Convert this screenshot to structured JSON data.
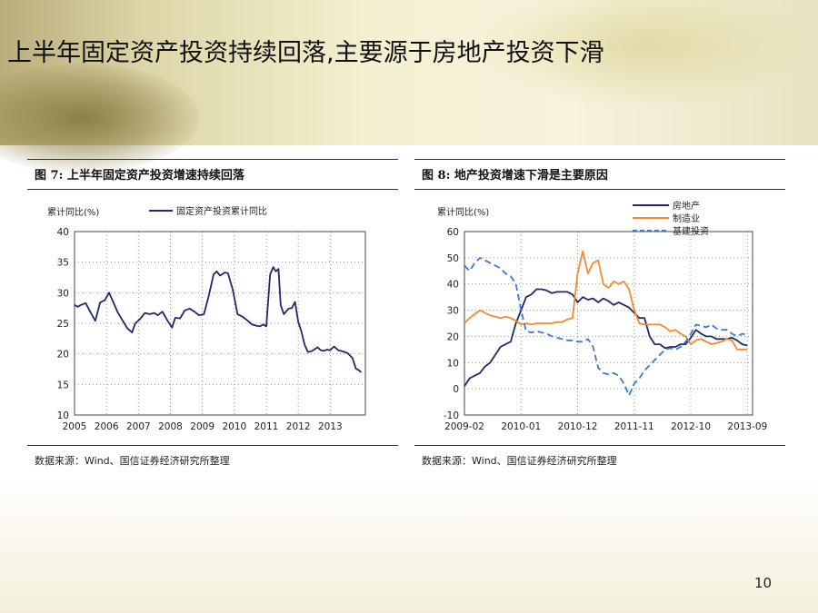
{
  "slide": {
    "title": "上半年固定资产投资持续回落,主要源于房地产投资下滑",
    "page_number": "10"
  },
  "chart_data": [
    {
      "type": "line",
      "figure_title": "图 7: 上半年固定资产投资增速持续回落",
      "ylabel": "累计同比(%)",
      "source": "数据来源：Wind、国信证券经济研究所整理",
      "xlim": [
        2005,
        2014.1
      ],
      "ylim": [
        10,
        40
      ],
      "yticks": [
        10,
        15,
        20,
        25,
        30,
        35,
        40
      ],
      "xticks": [
        "2005",
        "2006",
        "2007",
        "2008",
        "2009",
        "2010",
        "2011",
        "2012",
        "2013"
      ],
      "grid": true,
      "legend": "top",
      "series": [
        {
          "name": "固定资产投资累计同比",
          "color": "#1f2a6b",
          "points": [
            [
              2005.0,
              28.0
            ],
            [
              2005.1,
              27.7
            ],
            [
              2005.2,
              28.0
            ],
            [
              2005.35,
              28.3
            ],
            [
              2005.5,
              26.8
            ],
            [
              2005.65,
              25.4
            ],
            [
              2005.8,
              28.4
            ],
            [
              2005.95,
              28.8
            ],
            [
              2006.08,
              30.0
            ],
            [
              2006.2,
              28.6
            ],
            [
              2006.35,
              26.8
            ],
            [
              2006.5,
              25.5
            ],
            [
              2006.65,
              24.2
            ],
            [
              2006.8,
              23.5
            ],
            [
              2006.9,
              25.0
            ],
            [
              2007.05,
              25.7
            ],
            [
              2007.2,
              26.7
            ],
            [
              2007.35,
              26.5
            ],
            [
              2007.5,
              26.7
            ],
            [
              2007.6,
              26.3
            ],
            [
              2007.75,
              26.9
            ],
            [
              2007.9,
              25.5
            ],
            [
              2008.05,
              24.3
            ],
            [
              2008.15,
              25.9
            ],
            [
              2008.3,
              25.8
            ],
            [
              2008.45,
              27.1
            ],
            [
              2008.6,
              27.4
            ],
            [
              2008.75,
              26.9
            ],
            [
              2008.9,
              26.3
            ],
            [
              2009.05,
              26.5
            ],
            [
              2009.2,
              29.5
            ],
            [
              2009.35,
              33.0
            ],
            [
              2009.45,
              33.5
            ],
            [
              2009.55,
              32.8
            ],
            [
              2009.7,
              33.3
            ],
            [
              2009.8,
              33.2
            ],
            [
              2009.95,
              30.5
            ],
            [
              2010.1,
              26.5
            ],
            [
              2010.25,
              26.1
            ],
            [
              2010.4,
              25.5
            ],
            [
              2010.55,
              24.8
            ],
            [
              2010.7,
              24.6
            ],
            [
              2010.8,
              24.5
            ],
            [
              2010.9,
              24.8
            ],
            [
              2011.0,
              24.5
            ],
            [
              2011.12,
              33.0
            ],
            [
              2011.22,
              34.2
            ],
            [
              2011.3,
              33.5
            ],
            [
              2011.38,
              33.9
            ],
            [
              2011.45,
              28.0
            ],
            [
              2011.55,
              26.5
            ],
            [
              2011.7,
              27.4
            ],
            [
              2011.8,
              27.5
            ],
            [
              2011.9,
              28.5
            ],
            [
              2012.0,
              25.2
            ],
            [
              2012.1,
              23.6
            ],
            [
              2012.2,
              21.5
            ],
            [
              2012.3,
              20.3
            ],
            [
              2012.4,
              20.4
            ],
            [
              2012.5,
              20.7
            ],
            [
              2012.6,
              21.1
            ],
            [
              2012.7,
              20.6
            ],
            [
              2012.8,
              20.5
            ],
            [
              2012.9,
              20.7
            ],
            [
              2013.0,
              20.6
            ],
            [
              2013.12,
              21.2
            ],
            [
              2013.25,
              20.6
            ],
            [
              2013.4,
              20.4
            ],
            [
              2013.55,
              20.1
            ],
            [
              2013.7,
              19.3
            ],
            [
              2013.8,
              17.6
            ],
            [
              2013.9,
              17.3
            ],
            [
              2013.97,
              17.0
            ]
          ]
        }
      ]
    },
    {
      "type": "line",
      "figure_title": "图 8: 地产投资增速下滑是主要原因",
      "ylabel": "累计同比(%)",
      "source": "数据来源：Wind、国信证券经济研究所整理",
      "xlim": [
        0,
        56
      ],
      "ylim": [
        -10,
        60
      ],
      "yticks": [
        -10,
        0,
        10,
        20,
        30,
        40,
        50,
        60
      ],
      "xticks": [
        {
          "label": "2009-02",
          "x": 0
        },
        {
          "label": "2010-01",
          "x": 11
        },
        {
          "label": "2010-12",
          "x": 22
        },
        {
          "label": "2011-11",
          "x": 33
        },
        {
          "label": "2012-10",
          "x": 44
        },
        {
          "label": "2013-09",
          "x": 55
        }
      ],
      "grid": true,
      "legend": "top-right",
      "series": [
        {
          "name": "房地产",
          "color": "#1f2a6b",
          "dash": "",
          "points": [
            [
              0,
              1
            ],
            [
              1,
              4
            ],
            [
              2,
              5
            ],
            [
              3,
              6
            ],
            [
              4,
              8.5
            ],
            [
              5,
              10
            ],
            [
              6,
              13
            ],
            [
              7,
              16
            ],
            [
              8,
              17
            ],
            [
              9,
              18
            ],
            [
              10,
              25
            ],
            [
              11,
              30
            ],
            [
              12,
              35
            ],
            [
              13,
              36
            ],
            [
              14,
              38
            ],
            [
              15,
              38
            ],
            [
              16,
              37.5
            ],
            [
              17,
              36.5
            ],
            [
              18,
              37
            ],
            [
              19,
              37
            ],
            [
              20,
              37
            ],
            [
              21,
              36
            ],
            [
              22,
              33
            ],
            [
              23,
              35
            ],
            [
              24,
              34
            ],
            [
              25,
              34.5
            ],
            [
              26,
              33
            ],
            [
              27,
              34.5
            ],
            [
              28,
              33.5
            ],
            [
              29,
              32
            ],
            [
              30,
              33
            ],
            [
              31,
              32
            ],
            [
              32,
              31
            ],
            [
              33,
              29
            ],
            [
              34,
              27
            ],
            [
              35,
              27
            ],
            [
              36,
              20
            ],
            [
              37,
              17
            ],
            [
              38,
              17
            ],
            [
              39,
              15.5
            ],
            [
              40,
              16
            ],
            [
              41,
              16
            ],
            [
              42,
              17
            ],
            [
              43,
              17
            ],
            [
              44,
              19.5
            ],
            [
              45,
              22.5
            ],
            [
              46,
              21
            ],
            [
              47,
              20
            ],
            [
              48,
              20
            ],
            [
              49,
              19
            ],
            [
              50,
              19
            ],
            [
              51,
              19
            ],
            [
              52,
              19.5
            ],
            [
              53,
              18.5
            ],
            [
              54,
              17
            ],
            [
              55,
              16.5
            ]
          ]
        },
        {
          "name": "制造业",
          "color": "#f28a2e",
          "dash": "",
          "points": [
            [
              0,
              25
            ],
            [
              1,
              27
            ],
            [
              2,
              28.5
            ],
            [
              3,
              30
            ],
            [
              4,
              29
            ],
            [
              5,
              28
            ],
            [
              6,
              27.5
            ],
            [
              7,
              27
            ],
            [
              8,
              27.5
            ],
            [
              9,
              27
            ],
            [
              10,
              26
            ],
            [
              11,
              24.5
            ],
            [
              12,
              25
            ],
            [
              13,
              24.5
            ],
            [
              14,
              25
            ],
            [
              15,
              25
            ],
            [
              16,
              25
            ],
            [
              17,
              25
            ],
            [
              18,
              25.5
            ],
            [
              19,
              25.5
            ],
            [
              20,
              26.5
            ],
            [
              21,
              27
            ],
            [
              22,
              44
            ],
            [
              23,
              52.5
            ],
            [
              24,
              44
            ],
            [
              25,
              48
            ],
            [
              26,
              49
            ],
            [
              27,
              40
            ],
            [
              28,
              38.5
            ],
            [
              29,
              41
            ],
            [
              30,
              40
            ],
            [
              31,
              41
            ],
            [
              32,
              38
            ],
            [
              33,
              30
            ],
            [
              34,
              25
            ],
            [
              35,
              24.5
            ],
            [
              36,
              24.5
            ],
            [
              37,
              24.5
            ],
            [
              38,
              24.5
            ],
            [
              39,
              23.5
            ],
            [
              40,
              22
            ],
            [
              41,
              22.5
            ],
            [
              42,
              21
            ],
            [
              43,
              20
            ],
            [
              44,
              17
            ],
            [
              45,
              18.5
            ],
            [
              46,
              19
            ],
            [
              47,
              18
            ],
            [
              48,
              17
            ],
            [
              49,
              17.5
            ],
            [
              50,
              18
            ],
            [
              51,
              19
            ],
            [
              52,
              18.5
            ],
            [
              53,
              15
            ],
            [
              54,
              15
            ],
            [
              55,
              15
            ]
          ]
        },
        {
          "name": "基建投资",
          "color": "#3a78d6",
          "dash": "7 4",
          "points": [
            [
              0,
              47
            ],
            [
              1,
              45
            ],
            [
              2,
              48
            ],
            [
              3,
              50
            ],
            [
              4,
              49
            ],
            [
              5,
              48
            ],
            [
              6,
              47
            ],
            [
              7,
              46
            ],
            [
              8,
              44
            ],
            [
              9,
              43
            ],
            [
              10,
              40
            ],
            [
              11,
              30
            ],
            [
              12,
              22
            ],
            [
              13,
              21.5
            ],
            [
              14,
              22
            ],
            [
              15,
              21.5
            ],
            [
              16,
              21
            ],
            [
              17,
              20
            ],
            [
              18,
              19.5
            ],
            [
              19,
              19
            ],
            [
              20,
              18.5
            ],
            [
              21,
              18.5
            ],
            [
              22,
              18
            ],
            [
              23,
              18
            ],
            [
              24,
              19
            ],
            [
              25,
              16
            ],
            [
              26,
              8
            ],
            [
              27,
              6
            ],
            [
              28,
              5.5
            ],
            [
              29,
              6
            ],
            [
              30,
              5
            ],
            [
              31,
              2
            ],
            [
              32,
              -2.5
            ],
            [
              33,
              2
            ],
            [
              34,
              4
            ],
            [
              35,
              7
            ],
            [
              36,
              9
            ],
            [
              37,
              11
            ],
            [
              38,
              13
            ],
            [
              39,
              15
            ],
            [
              40,
              15.5
            ],
            [
              41,
              15
            ],
            [
              42,
              16
            ],
            [
              43,
              18
            ],
            [
              44,
              21
            ],
            [
              45,
              24.5
            ],
            [
              46,
              24
            ],
            [
              47,
              23.5
            ],
            [
              48,
              24.5
            ],
            [
              49,
              23
            ],
            [
              50,
              22.5
            ],
            [
              51,
              22.5
            ],
            [
              52,
              21
            ],
            [
              53,
              20
            ],
            [
              54,
              21
            ],
            [
              55,
              20.5
            ]
          ]
        }
      ]
    }
  ]
}
